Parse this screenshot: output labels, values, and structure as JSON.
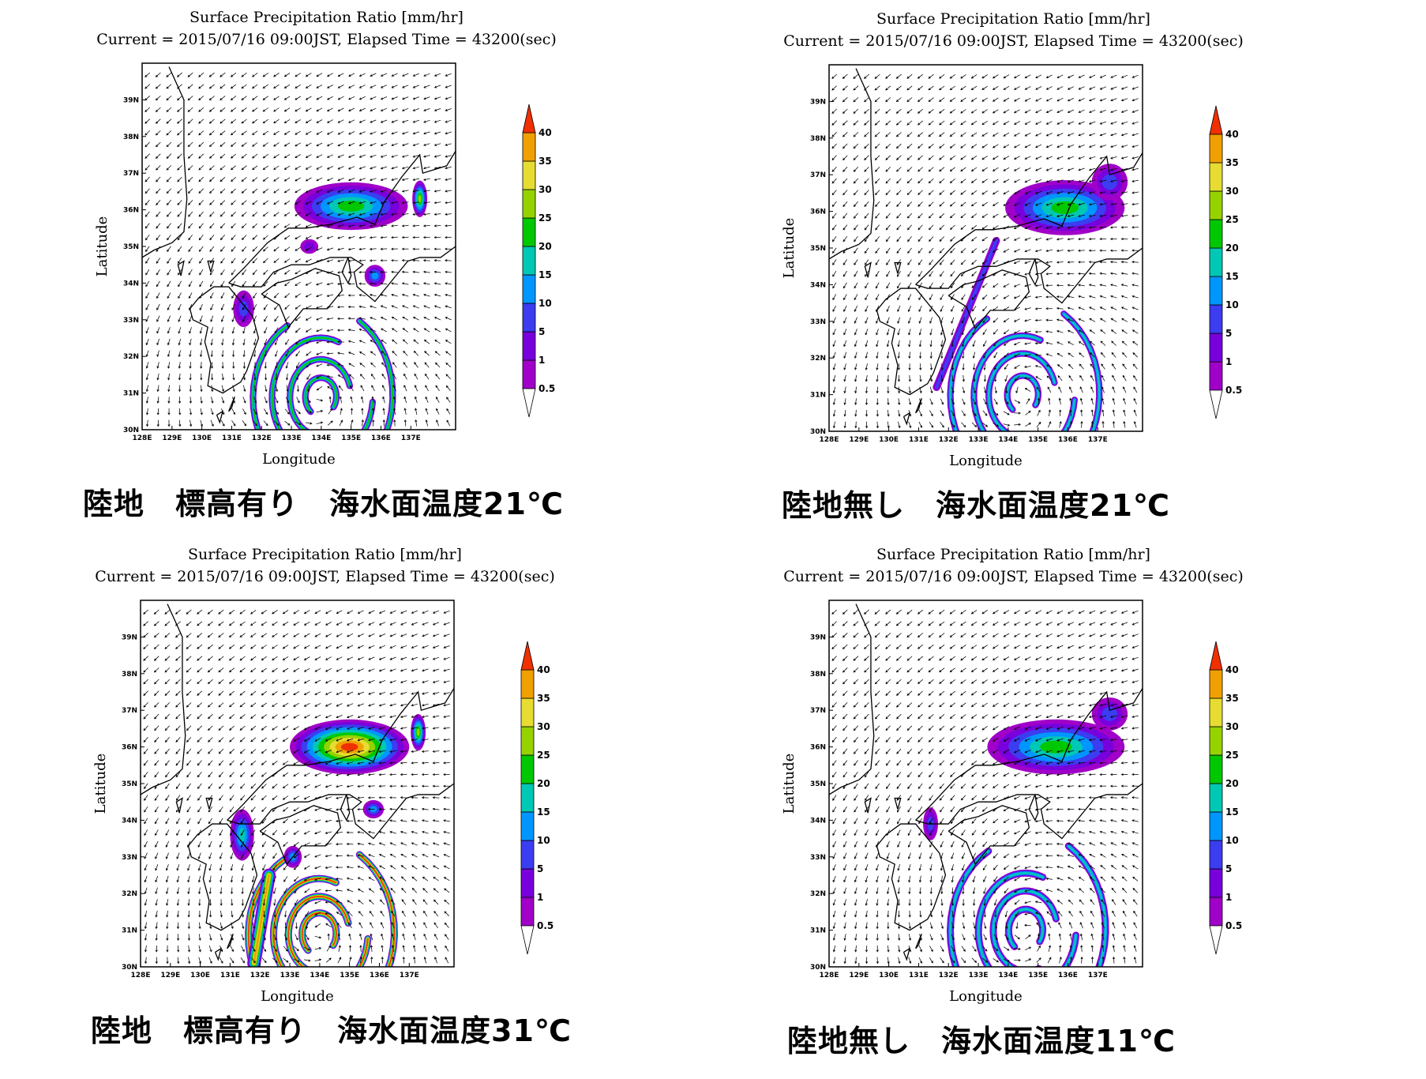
{
  "colors": {
    "bins": [
      "#ffffff",
      "#a000c8",
      "#7800dc",
      "#3c3cf0",
      "#0096ff",
      "#00c8b4",
      "#00c800",
      "#96d200",
      "#e6dc32",
      "#f0a000",
      "#f03000"
    ],
    "frame": "#000000",
    "coast": "#000000",
    "vector": "#000000"
  },
  "panels": [
    {
      "title": "Surface Precipitation Ratio [mm/hr]",
      "subtitle": "Current = 2015/07/16 09:00JST, Elapsed Time = 43200(sec)",
      "caption": "陸地　標高有り　海水面温度21℃",
      "chart_data": {
        "type": "heatmap",
        "variable": "Surface Precipitation Ratio",
        "unit": "mm/hr",
        "xlabel": "Longitude",
        "ylabel": "Latitude",
        "xlim": [
          128,
          138.5
        ],
        "ylim": [
          30,
          40
        ],
        "x_ticks": [
          "128E",
          "129E",
          "130E",
          "131E",
          "132E",
          "133E",
          "134E",
          "135E",
          "136E",
          "137E"
        ],
        "y_ticks": [
          "30N",
          "31N",
          "32N",
          "33N",
          "34N",
          "35N",
          "36N",
          "37N",
          "38N",
          "39N"
        ],
        "colorbar_levels": [
          "0.5",
          "1",
          "5",
          "10",
          "15",
          "20",
          "25",
          "30",
          "35",
          "40"
        ],
        "wind_vectors": true,
        "typhoon_center": [
          134.0,
          30.9
        ],
        "rain_areas": [
          {
            "shape": "ring",
            "lon": 134.0,
            "lat": 30.9,
            "r": [
              0.5,
              1.0,
              1.6,
              2.25
            ],
            "width": 0.22,
            "max": 20
          },
          {
            "shape": "blob",
            "lon": 135.0,
            "lat": 36.1,
            "rx": 1.9,
            "ry": 0.65,
            "max": 20
          },
          {
            "shape": "blob",
            "lon": 137.3,
            "lat": 36.3,
            "rx": 0.25,
            "ry": 0.5,
            "max": 25
          },
          {
            "shape": "blob",
            "lon": 131.4,
            "lat": 33.3,
            "rx": 0.35,
            "ry": 0.5,
            "max": 5
          },
          {
            "shape": "blob",
            "lon": 135.8,
            "lat": 34.2,
            "rx": 0.35,
            "ry": 0.3,
            "max": 10
          },
          {
            "shape": "blob",
            "lon": 133.6,
            "lat": 35.0,
            "rx": 0.3,
            "ry": 0.2,
            "max": 1
          }
        ]
      }
    },
    {
      "title": "Surface Precipitation Ratio [mm/hr]",
      "subtitle": "Current = 2015/07/16 09:00JST, Elapsed Time = 43200(sec)",
      "caption": "陸地無し　海水面温度21℃",
      "chart_data": {
        "type": "heatmap",
        "variable": "Surface Precipitation Ratio",
        "unit": "mm/hr",
        "xlabel": "Longitude",
        "ylabel": "Latitude",
        "xlim": [
          128,
          138.5
        ],
        "ylim": [
          30,
          40
        ],
        "x_ticks": [
          "128E",
          "129E",
          "130E",
          "131E",
          "132E",
          "133E",
          "134E",
          "135E",
          "136E",
          "137E"
        ],
        "y_ticks": [
          "30N",
          "31N",
          "32N",
          "33N",
          "34N",
          "35N",
          "36N",
          "37N",
          "38N",
          "39N"
        ],
        "colorbar_levels": [
          "0.5",
          "1",
          "5",
          "10",
          "15",
          "20",
          "25",
          "30",
          "35",
          "40"
        ],
        "wind_vectors": true,
        "typhoon_center": [
          134.5,
          31.0
        ],
        "rain_areas": [
          {
            "shape": "ring",
            "lon": 134.5,
            "lat": 31.0,
            "r": [
              0.5,
              1.1,
              1.6,
              2.4
            ],
            "width": 0.22,
            "max": 15
          },
          {
            "shape": "band",
            "from": [
              131.6,
              31.2
            ],
            "to": [
              133.6,
              35.2
            ],
            "width": 0.25,
            "max": 5
          },
          {
            "shape": "blob",
            "lon": 135.9,
            "lat": 36.1,
            "rx": 2.0,
            "ry": 0.75,
            "max": 20
          },
          {
            "shape": "blob",
            "lon": 137.4,
            "lat": 36.8,
            "rx": 0.6,
            "ry": 0.5,
            "max": 5
          }
        ]
      }
    },
    {
      "title": "Surface Precipitation Ratio [mm/hr]",
      "subtitle": "Current = 2015/07/16 09:00JST, Elapsed Time = 43200(sec)",
      "caption": "陸地　標高有り　海水面温度31℃",
      "chart_data": {
        "type": "heatmap",
        "variable": "Surface Precipitation Ratio",
        "unit": "mm/hr",
        "xlabel": "Longitude",
        "ylabel": "Latitude",
        "xlim": [
          128,
          138.5
        ],
        "ylim": [
          30,
          40
        ],
        "x_ticks": [
          "128E",
          "129E",
          "130E",
          "131E",
          "132E",
          "133E",
          "134E",
          "135E",
          "136E",
          "137E"
        ],
        "y_ticks": [
          "30N",
          "31N",
          "32N",
          "33N",
          "34N",
          "35N",
          "36N",
          "37N",
          "38N",
          "39N"
        ],
        "colorbar_levels": [
          "0.5",
          "1",
          "5",
          "10",
          "15",
          "20",
          "25",
          "30",
          "35",
          "40"
        ],
        "wind_vectors": true,
        "typhoon_center": [
          134.0,
          30.9
        ],
        "rain_areas": [
          {
            "shape": "ring",
            "lon": 134.0,
            "lat": 30.9,
            "r": [
              0.55,
              1.0,
              1.5,
              2.35
            ],
            "width": 0.24,
            "max": 40
          },
          {
            "shape": "band",
            "from": [
              131.8,
              30.1
            ],
            "to": [
              132.3,
              32.5
            ],
            "width": 0.45,
            "max": 35
          },
          {
            "shape": "blob",
            "lon": 135.0,
            "lat": 36.0,
            "rx": 2.0,
            "ry": 0.75,
            "max": 40
          },
          {
            "shape": "blob",
            "lon": 137.3,
            "lat": 36.4,
            "rx": 0.25,
            "ry": 0.5,
            "max": 25
          },
          {
            "shape": "blob",
            "lon": 131.4,
            "lat": 33.6,
            "rx": 0.4,
            "ry": 0.7,
            "max": 15
          },
          {
            "shape": "blob",
            "lon": 135.8,
            "lat": 34.3,
            "rx": 0.35,
            "ry": 0.25,
            "max": 10
          },
          {
            "shape": "blob",
            "lon": 133.1,
            "lat": 33.0,
            "rx": 0.3,
            "ry": 0.3,
            "max": 10
          }
        ]
      }
    },
    {
      "title": "Surface Precipitation Ratio [mm/hr]",
      "subtitle": "Current = 2015/07/16 09:00JST, Elapsed Time = 43200(sec)",
      "caption": "陸地無し　海水面温度11℃",
      "chart_data": {
        "type": "heatmap",
        "variable": "Surface Precipitation Ratio",
        "unit": "mm/hr",
        "xlabel": "Longitude",
        "ylabel": "Latitude",
        "xlim": [
          128,
          138.5
        ],
        "ylim": [
          30,
          40
        ],
        "x_ticks": [
          "128E",
          "129E",
          "130E",
          "131E",
          "132E",
          "133E",
          "134E",
          "135E",
          "136E",
          "137E"
        ],
        "y_ticks": [
          "30N",
          "31N",
          "32N",
          "33N",
          "34N",
          "35N",
          "36N",
          "37N",
          "38N",
          "39N"
        ],
        "colorbar_levels": [
          "0.5",
          "1",
          "5",
          "10",
          "15",
          "20",
          "25",
          "30",
          "35",
          "40"
        ],
        "wind_vectors": true,
        "typhoon_center": [
          134.6,
          31.0
        ],
        "rain_areas": [
          {
            "shape": "ring",
            "lon": 134.6,
            "lat": 31.0,
            "r": [
              0.55,
              1.05,
              1.55,
              2.5
            ],
            "width": 0.24,
            "max": 15
          },
          {
            "shape": "blob",
            "lon": 135.6,
            "lat": 36.0,
            "rx": 2.3,
            "ry": 0.75,
            "max": 20
          },
          {
            "shape": "blob",
            "lon": 137.4,
            "lat": 36.9,
            "rx": 0.6,
            "ry": 0.45,
            "max": 5
          },
          {
            "shape": "blob",
            "lon": 131.4,
            "lat": 33.9,
            "rx": 0.25,
            "ry": 0.45,
            "max": 5
          }
        ]
      }
    }
  ]
}
